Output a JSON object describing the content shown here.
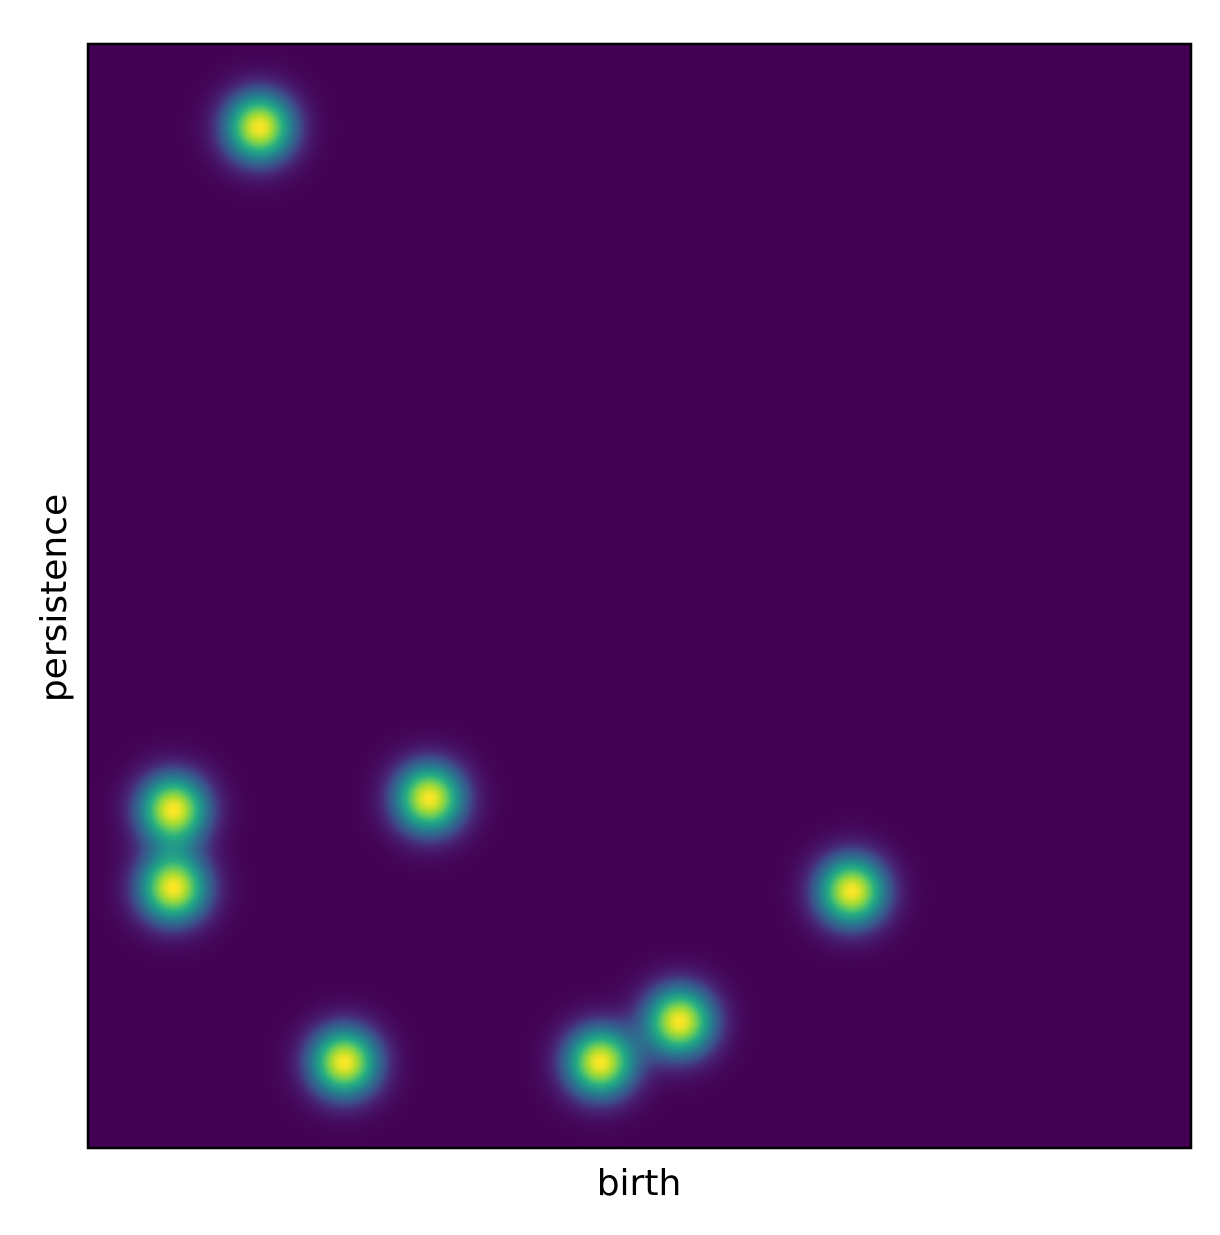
{
  "chart_data": {
    "type": "heatmap",
    "title": "",
    "xlabel": "birth",
    "ylabel": "persistence",
    "xlim": [
      0,
      1
    ],
    "ylim": [
      0,
      1
    ],
    "grid": false,
    "ticks": "none",
    "colormap": "viridis",
    "colors": {
      "background": "#440154",
      "peak": "#fde725",
      "mid": "#21918c",
      "frame": "#000000"
    },
    "points": [
      {
        "x": 0.155,
        "y": 0.925
      },
      {
        "x": 0.077,
        "y": 0.307
      },
      {
        "x": 0.077,
        "y": 0.236
      },
      {
        "x": 0.309,
        "y": 0.317
      },
      {
        "x": 0.692,
        "y": 0.233
      },
      {
        "x": 0.536,
        "y": 0.115
      },
      {
        "x": 0.464,
        "y": 0.078
      },
      {
        "x": 0.232,
        "y": 0.078
      }
    ],
    "kernel_sigma": 0.022
  }
}
